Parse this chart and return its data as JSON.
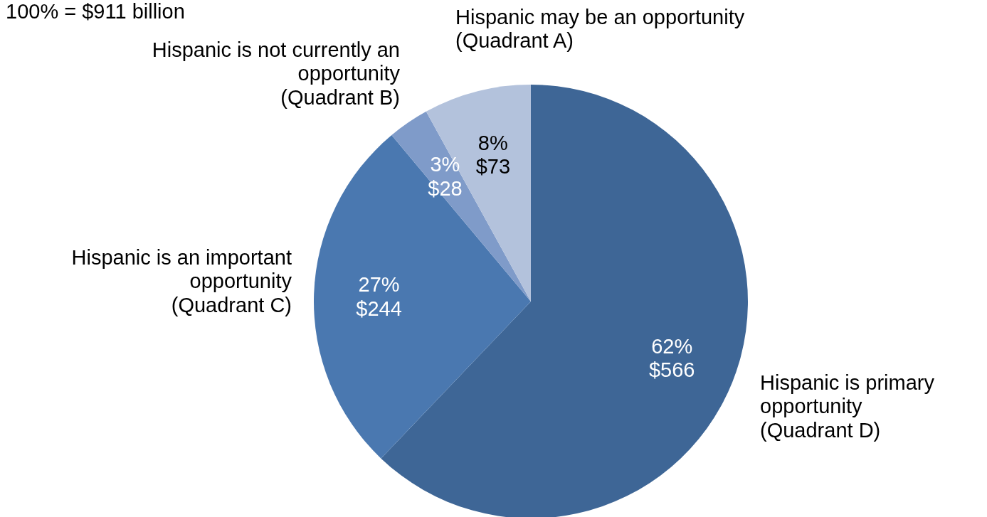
{
  "chart_data": {
    "type": "pie",
    "title": "100% = $911 billion",
    "categories": [
      "Hispanic is primary opportunity (Quadrant D)",
      "Hispanic is an important opportunity (Quadrant C)",
      "Hispanic is not currently an opportunity (Quadrant B)",
      "Hispanic may be an opportunity (Quadrant A)"
    ],
    "values": [
      566,
      244,
      28,
      73
    ],
    "colors": [
      "#3e6696",
      "#4a78b0",
      "#7f9bc9",
      "#b3c2dc"
    ],
    "value_labels": [
      "62%\n$566",
      "27%\n$244",
      "3%\n$28",
      "8%\n$73"
    ]
  }
}
